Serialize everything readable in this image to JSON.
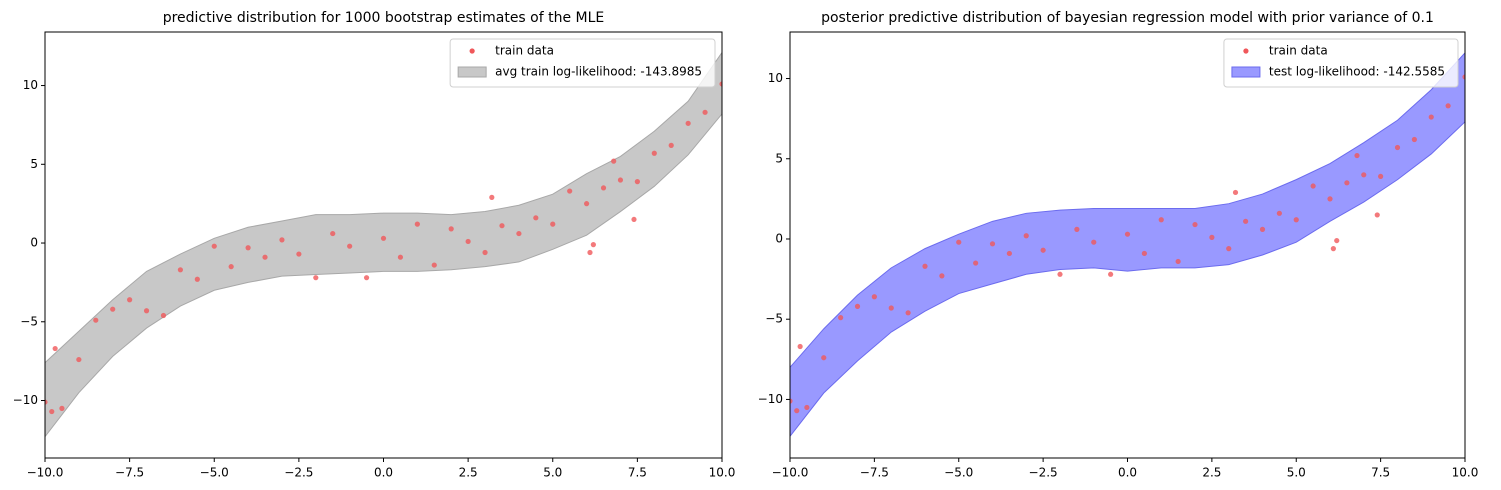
{
  "chart_data": [
    {
      "type": "scatter",
      "title": "predictive distribution for 1000 bootstrap estimates of the MLE",
      "xlim": [
        -10,
        10
      ],
      "ylim": [
        -13.65,
        13.4
      ],
      "xticks": [
        {
          "value": -10,
          "label": "−10.0"
        },
        {
          "value": -7.5,
          "label": "−7.5"
        },
        {
          "value": -5,
          "label": "−5.0"
        },
        {
          "value": -2.5,
          "label": "−2.5"
        },
        {
          "value": 0,
          "label": "0.0"
        },
        2.5,
        {
          "value": 5,
          "label": "5.0"
        },
        7.5,
        {
          "value": 10,
          "label": "10.0"
        }
      ],
      "yticks": [
        {
          "value": -10,
          "label": "−10"
        },
        {
          "value": -5,
          "label": "−5"
        },
        0,
        5,
        10
      ],
      "legend": "upper right",
      "series": [
        {
          "name": "train data",
          "type": "scatter",
          "color": "#f0575a",
          "x": [
            -10,
            -9.8,
            -9.7,
            -9.5,
            -9,
            -8.5,
            -8,
            -7.5,
            -7,
            -6.5,
            -6,
            -5.5,
            -5,
            -4.5,
            -4,
            -3.5,
            -3,
            -2.5,
            -2,
            -1.5,
            -1,
            -0.5,
            0,
            0.5,
            1,
            1.5,
            2,
            2.5,
            3,
            3.2,
            3.5,
            4,
            4.5,
            5,
            5.5,
            6,
            6.1,
            6.2,
            6.5,
            6.8,
            7,
            7.4,
            7.5,
            8,
            8.5,
            9,
            9.5,
            10
          ],
          "values": [
            -10.1,
            -10.7,
            -6.7,
            -10.5,
            -7.4,
            -4.9,
            -4.2,
            -3.6,
            -4.3,
            -4.6,
            -1.7,
            -2.3,
            -0.2,
            -1.5,
            -0.3,
            -0.9,
            0.2,
            -0.7,
            -2.2,
            0.6,
            -0.2,
            -2.2,
            0.3,
            -0.9,
            1.2,
            -1.4,
            0.9,
            0.1,
            -0.6,
            2.9,
            1.1,
            0.6,
            1.6,
            1.2,
            3.3,
            2.5,
            -0.6,
            -0.1,
            3.5,
            5.2,
            4.0,
            1.5,
            3.9,
            5.7,
            6.2,
            7.6,
            8.3,
            10.1
          ]
        },
        {
          "name": "avg train log-likelihood: -143.8985",
          "type": "band",
          "color": "#c8c8c8",
          "edge": "#a8a8a8",
          "x": [
            -10,
            -9,
            -8,
            -7,
            -6,
            -5,
            -4,
            -3,
            -2,
            -1,
            0,
            1,
            2,
            3,
            4,
            5,
            6,
            7,
            8,
            9,
            10
          ],
          "upper": [
            -7.6,
            -5.6,
            -3.6,
            -1.8,
            -0.7,
            0.3,
            1.0,
            1.4,
            1.8,
            1.8,
            1.9,
            1.9,
            1.8,
            2.0,
            2.4,
            3.1,
            4.4,
            5.5,
            7.1,
            9.0,
            12.1
          ],
          "lower": [
            -12.3,
            -9.5,
            -7.2,
            -5.4,
            -4.0,
            -3.0,
            -2.5,
            -2.1,
            -2.0,
            -1.9,
            -1.8,
            -1.8,
            -1.7,
            -1.5,
            -1.2,
            -0.4,
            0.5,
            2.0,
            3.6,
            5.6,
            8.2
          ]
        }
      ]
    },
    {
      "type": "scatter",
      "title": "posterior predictive distribution of bayesian regression model with prior variance of 0.1",
      "xlim": [
        -10,
        10
      ],
      "ylim": [
        -13.65,
        12.9
      ],
      "xticks": [
        {
          "value": -10,
          "label": "−10.0"
        },
        {
          "value": -7.5,
          "label": "−7.5"
        },
        {
          "value": -5,
          "label": "−5.0"
        },
        {
          "value": -2.5,
          "label": "−2.5"
        },
        {
          "value": 0,
          "label": "0.0"
        },
        2.5,
        {
          "value": 5,
          "label": "5.0"
        },
        7.5,
        {
          "value": 10,
          "label": "10.0"
        }
      ],
      "yticks": [
        {
          "value": -10,
          "label": "−10"
        },
        {
          "value": -5,
          "label": "−5"
        },
        0,
        5,
        10
      ],
      "legend": "upper right",
      "series": [
        {
          "name": "train data",
          "type": "scatter",
          "color": "#f0575a",
          "x": [
            -10,
            -9.8,
            -9.7,
            -9.5,
            -9,
            -8.5,
            -8,
            -7.5,
            -7,
            -6.5,
            -6,
            -5.5,
            -5,
            -4.5,
            -4,
            -3.5,
            -3,
            -2.5,
            -2,
            -1.5,
            -1,
            -0.5,
            0,
            0.5,
            1,
            1.5,
            2,
            2.5,
            3,
            3.2,
            3.5,
            4,
            4.5,
            5,
            5.5,
            6,
            6.1,
            6.2,
            6.5,
            6.8,
            7,
            7.4,
            7.5,
            8,
            8.5,
            9,
            9.5,
            10
          ],
          "values": [
            -10.1,
            -10.7,
            -6.7,
            -10.5,
            -7.4,
            -4.9,
            -4.2,
            -3.6,
            -4.3,
            -4.6,
            -1.7,
            -2.3,
            -0.2,
            -1.5,
            -0.3,
            -0.9,
            0.2,
            -0.7,
            -2.2,
            0.6,
            -0.2,
            -2.2,
            0.3,
            -0.9,
            1.2,
            -1.4,
            0.9,
            0.1,
            -0.6,
            2.9,
            1.1,
            0.6,
            1.6,
            1.2,
            3.3,
            2.5,
            -0.6,
            -0.1,
            3.5,
            5.2,
            4.0,
            1.5,
            3.9,
            5.7,
            6.2,
            7.6,
            8.3,
            10.1
          ]
        },
        {
          "name": "test log-likelihood: -142.5585",
          "type": "band",
          "color": "#9999ff",
          "edge": "#6b6bee",
          "x": [
            -10,
            -9,
            -8,
            -7,
            -6,
            -5,
            -4,
            -3,
            -2,
            -1,
            0,
            1,
            2,
            3,
            4,
            5,
            6,
            7,
            8,
            9,
            10
          ],
          "upper": [
            -8.0,
            -5.6,
            -3.5,
            -1.8,
            -0.6,
            0.3,
            1.1,
            1.6,
            1.8,
            1.9,
            1.9,
            1.9,
            1.9,
            2.2,
            2.8,
            3.7,
            4.7,
            6.0,
            7.4,
            9.3,
            11.6
          ],
          "lower": [
            -12.3,
            -9.6,
            -7.6,
            -5.8,
            -4.5,
            -3.4,
            -2.8,
            -2.2,
            -1.9,
            -1.8,
            -2.0,
            -1.8,
            -1.8,
            -1.6,
            -1.0,
            -0.2,
            1.1,
            2.3,
            3.7,
            5.3,
            7.3
          ]
        }
      ]
    }
  ]
}
